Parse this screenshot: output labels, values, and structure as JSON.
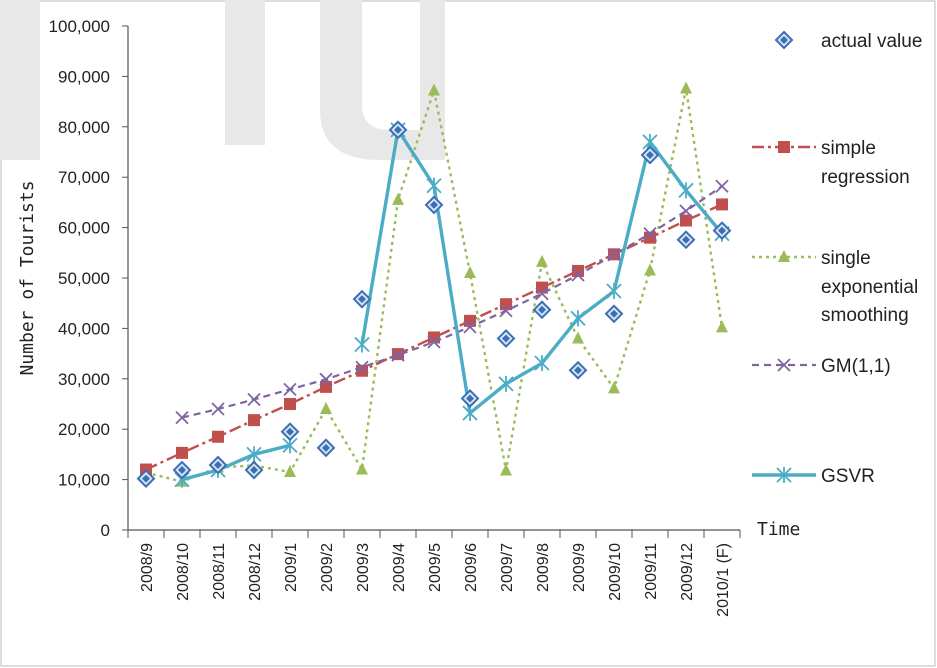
{
  "chart_data": {
    "type": "line",
    "xlabel": "Time",
    "ylabel": "Number of Tourists",
    "ylim": [
      0,
      100000
    ],
    "yticks": [
      "0",
      "10,000",
      "20,000",
      "30,000",
      "40,000",
      "50,000",
      "60,000",
      "70,000",
      "80,000",
      "90,000",
      "100,000"
    ],
    "categories": [
      "2008/9",
      "2008/10",
      "2008/11",
      "2008/12",
      "2009/1",
      "2009/2",
      "2009/3",
      "2009/4",
      "2009/5",
      "2009/6",
      "2009/7",
      "2009/8",
      "2009/9",
      "2009/10",
      "2009/11",
      "2009/12",
      "2010/1 (F)"
    ],
    "legend_position": "right",
    "grid": false,
    "series": [
      {
        "key": "actual",
        "name": "actual value",
        "marker": "diamond",
        "line": "none",
        "color": "#3b6fb5",
        "values": [
          10200,
          11900,
          12900,
          11900,
          19500,
          16300,
          45800,
          79400,
          64500,
          26100,
          38000,
          43700,
          31700,
          42900,
          74400,
          57600,
          59400
        ]
      },
      {
        "key": "regression",
        "name": "simple regression",
        "marker": "square",
        "line": "dashdot",
        "color": "#c0504d",
        "values": [
          12000,
          15300,
          18500,
          21800,
          25000,
          28400,
          31600,
          34900,
          38200,
          41500,
          44800,
          48100,
          51400,
          54700,
          58000,
          61400,
          64600
        ]
      },
      {
        "key": "exponential",
        "name": "single exponential smoothing",
        "marker": "triangle",
        "line": "dotted",
        "color": "#9bbb59",
        "values": [
          11400,
          9600,
          12400,
          12800,
          11500,
          24000,
          12000,
          65500,
          87200,
          51000,
          11800,
          53200,
          38000,
          28100,
          51500,
          87600,
          40200
        ]
      },
      {
        "key": "gm",
        "name": "GM(1,1)",
        "marker": "x",
        "line": "dashed",
        "color": "#8064a2",
        "values": [
          null,
          22300,
          24000,
          25900,
          27900,
          29900,
          32300,
          34700,
          37300,
          40300,
          43500,
          46900,
          50600,
          54600,
          58800,
          63300,
          68200
        ]
      },
      {
        "key": "gsvr",
        "name": "GSVR",
        "marker": "asterisk",
        "line": "solid",
        "color": "#4bacc6",
        "values": [
          null,
          10000,
          11900,
          15000,
          16800,
          null,
          36800,
          79400,
          68300,
          23200,
          29000,
          33100,
          42000,
          47400,
          77000,
          67400,
          58800
        ]
      }
    ]
  }
}
